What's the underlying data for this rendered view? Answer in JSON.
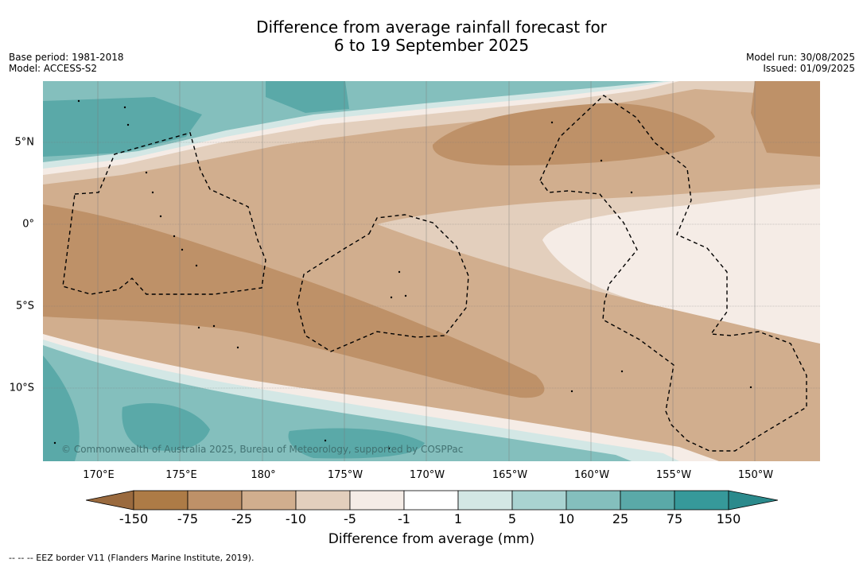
{
  "title": {
    "line1": "Difference from average rainfall forecast for",
    "line2": "6 to 19 September 2025"
  },
  "meta_left": {
    "base_period": "Base period: 1981-2018",
    "model": "Model: ACCESS-S2"
  },
  "meta_right": {
    "model_run": "Model run: 30/08/2025",
    "issued": "Issued: 01/09/2025"
  },
  "map": {
    "longitude_labels": [
      "170°E",
      "175°E",
      "180°",
      "175°W",
      "170°W",
      "165°W",
      "160°W",
      "155°W",
      "150°W"
    ],
    "latitude_labels": [
      "5°N",
      "0°",
      "5°S",
      "10°S"
    ],
    "copyright": "© Commonwealth of Australia 2025, Bureau of Meteorology, supported by COSPPac"
  },
  "colorbar": {
    "ticks": [
      "-150",
      "-75",
      "-25",
      "-10",
      "-5",
      "-1",
      "1",
      "5",
      "10",
      "25",
      "75",
      "150"
    ],
    "colors": [
      "#9a6a3e",
      "#ad7b46",
      "#be9168",
      "#d1ae8e",
      "#e3cfbd",
      "#f5ece6",
      "#ffffff",
      "#d3e7e5",
      "#a9d3d1",
      "#84bfbd",
      "#5aa9a8",
      "#36999a",
      "#2b8a8c"
    ],
    "label": "Difference from average (mm)"
  },
  "footnote": "--  --  -- EEZ border V11 (Flanders Marine Institute, 2019)."
}
